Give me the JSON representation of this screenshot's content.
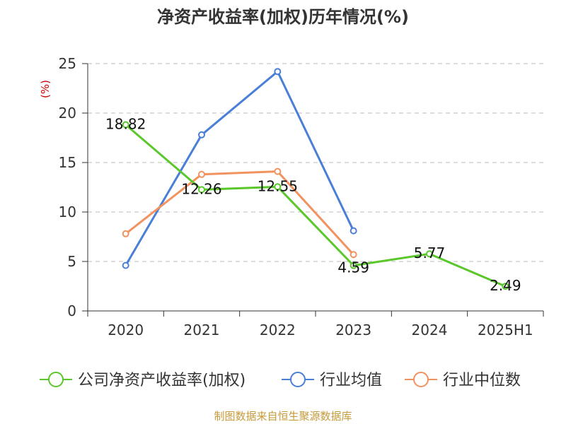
{
  "chart_data": {
    "type": "line",
    "title": "净资产收益率(加权)历年情况(%)",
    "ylabel": "(%)",
    "ylim": [
      0,
      25
    ],
    "yticks": [
      0,
      5,
      10,
      15,
      20,
      25
    ],
    "grid": true,
    "legend_position": "bottom",
    "categories": [
      "2020",
      "2021",
      "2022",
      "2023",
      "2024",
      "2025H1"
    ],
    "series": [
      {
        "name": "公司净资产收益率(加权)",
        "color": "#5ac72a",
        "values": [
          18.82,
          12.26,
          12.55,
          4.59,
          5.77,
          2.49
        ],
        "labels": [
          "18.82",
          "12.26",
          "12.55",
          "4.59",
          "5.77",
          "2.49"
        ]
      },
      {
        "name": "行业均值",
        "color": "#4a7fd8",
        "values": [
          4.6,
          17.8,
          24.2,
          8.1,
          null,
          null
        ]
      },
      {
        "name": "行业中位数",
        "color": "#f2925f",
        "values": [
          7.8,
          13.8,
          14.1,
          5.7,
          null,
          null
        ]
      }
    ]
  },
  "source": "制图数据来自恒生聚源数据库"
}
